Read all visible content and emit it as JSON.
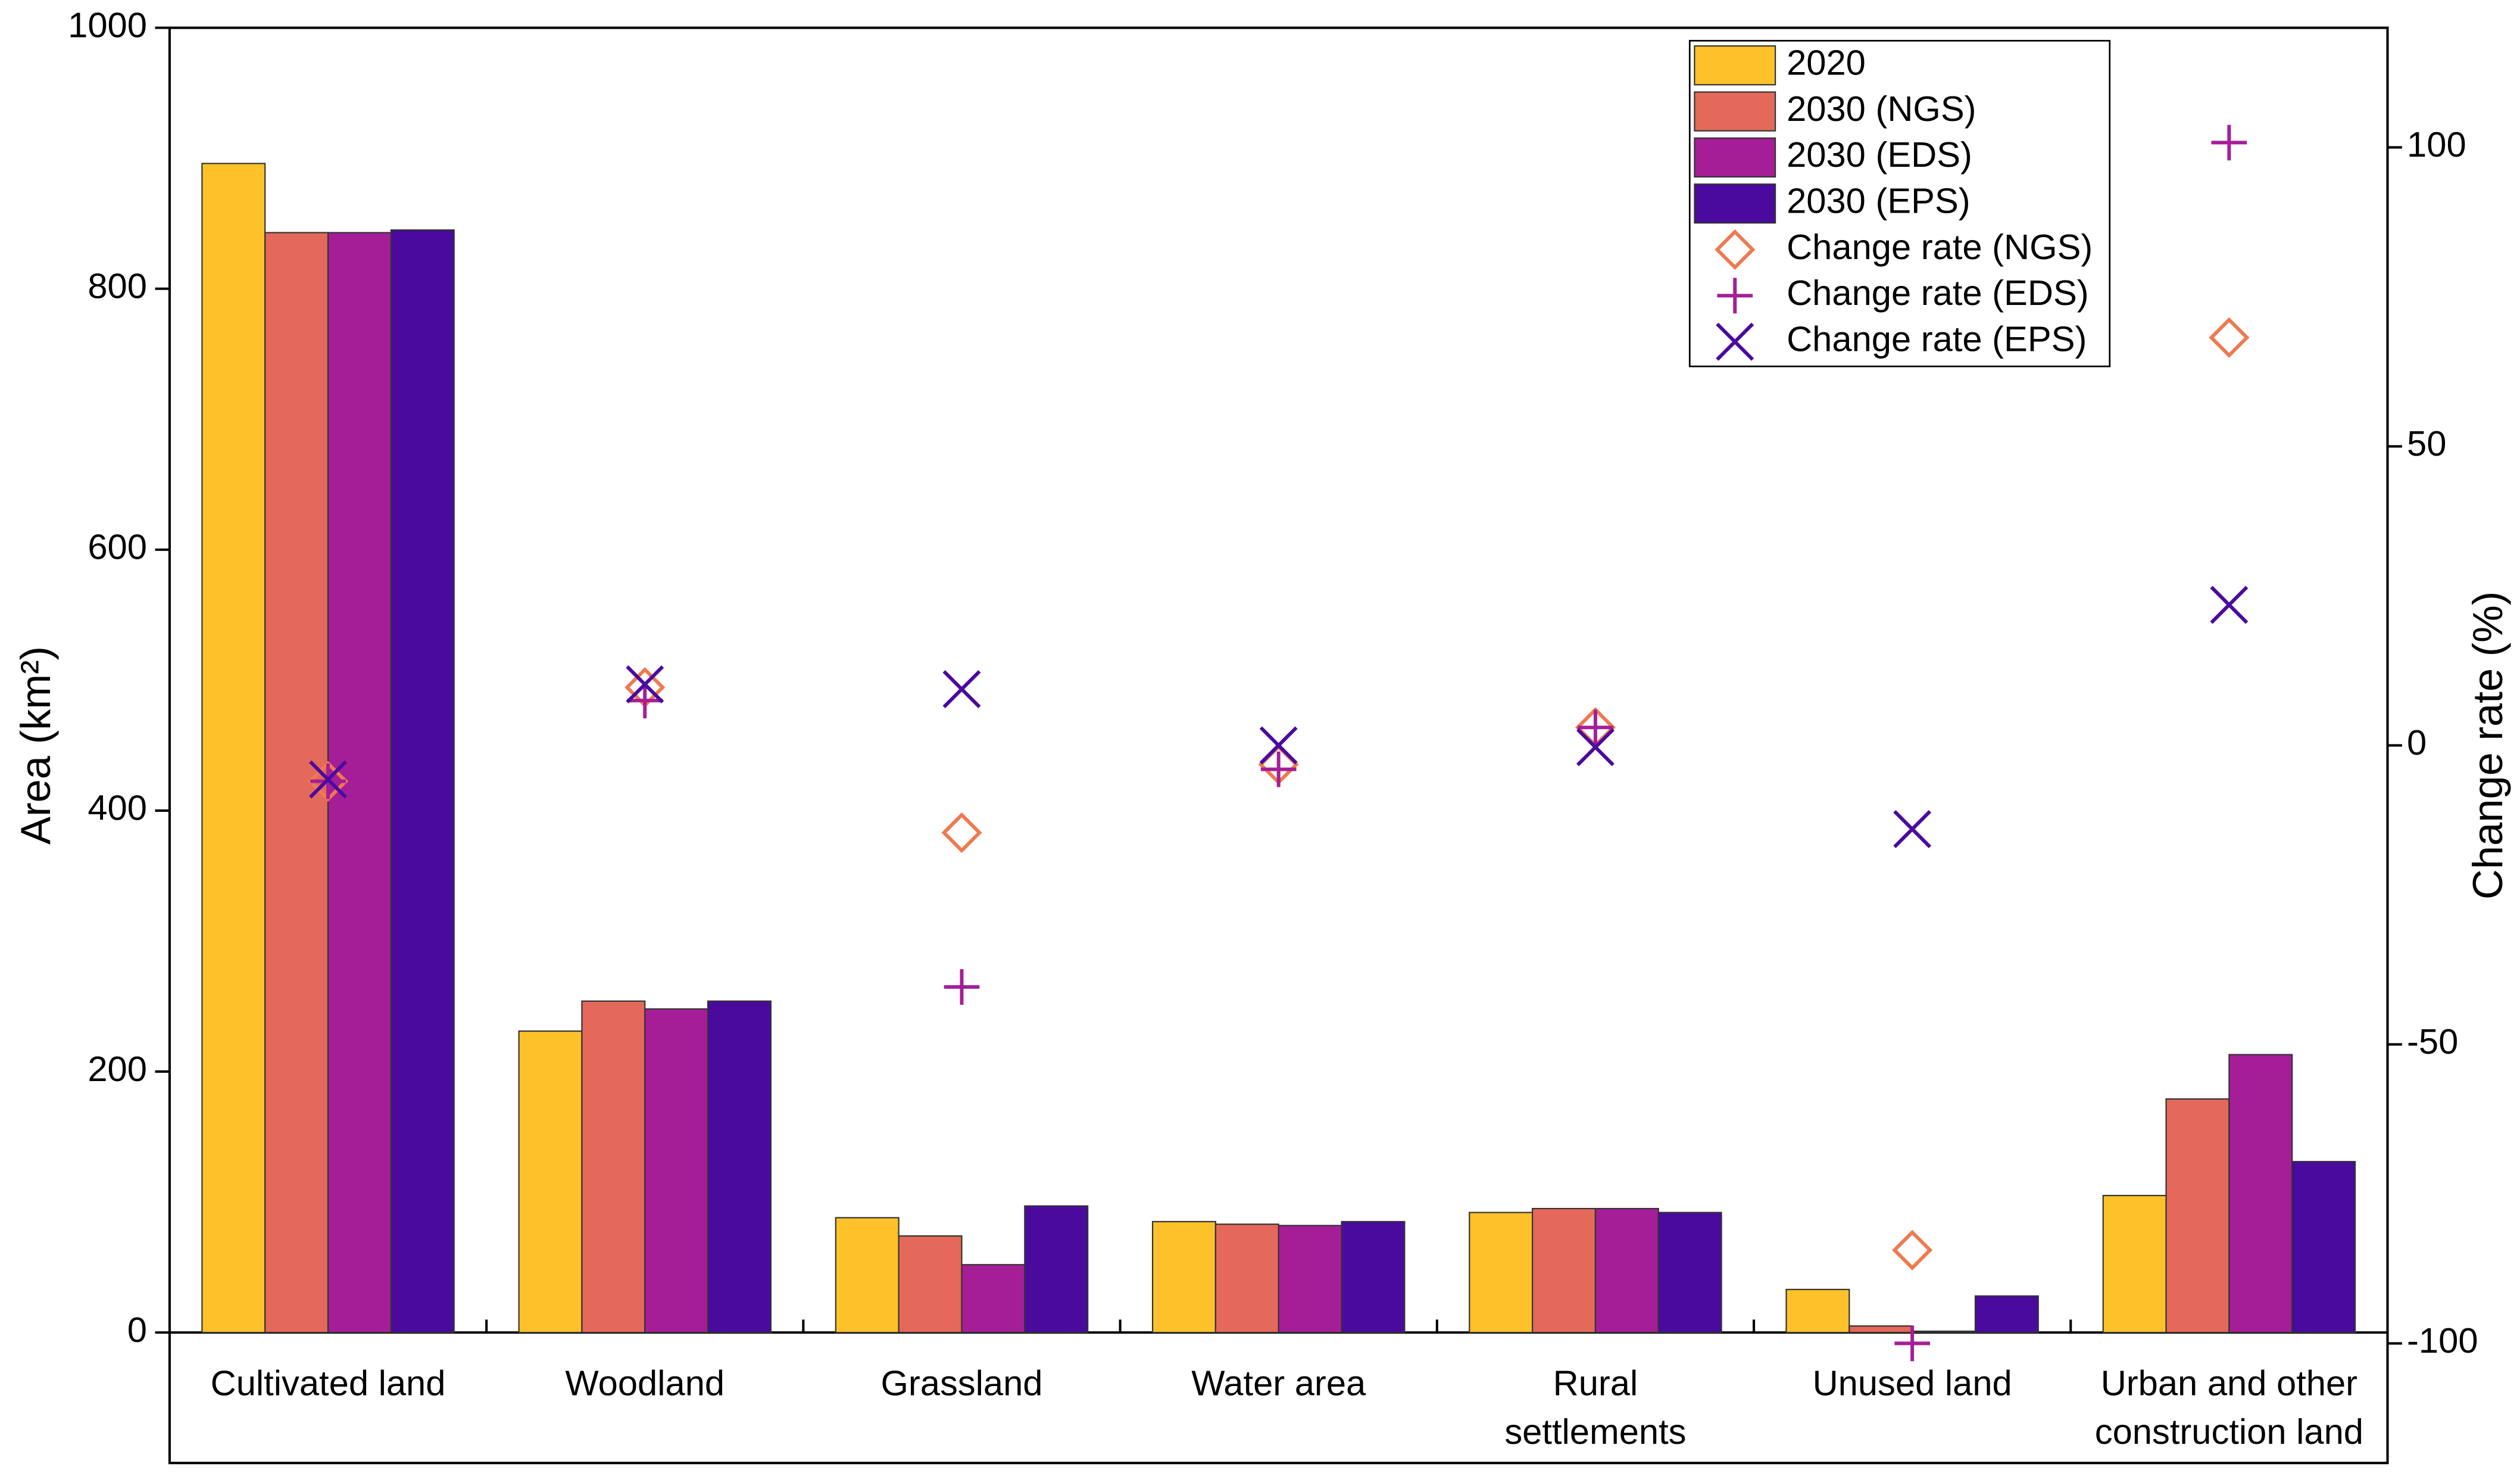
{
  "chart_data": {
    "type": "bar",
    "categories": [
      "Cultivated land",
      "Woodland",
      "Grassland",
      "Water area",
      "Rural settlements",
      "Unused land",
      "Urban and other construction land"
    ],
    "y_label": "Area (km²)",
    "y2_label": "Change rate (%)",
    "ylim": [
      -100,
      1000
    ],
    "yticks": [
      0,
      200,
      400,
      600,
      800,
      1000
    ],
    "y2lim": [
      -120,
      120
    ],
    "y2ticks": [
      -100,
      -50,
      0,
      50,
      100
    ],
    "legend": "upper right",
    "series": [
      {
        "name": "2020",
        "type": "bar",
        "color": "#fdc12a",
        "values": [
          896,
          231,
          88,
          85,
          92,
          33,
          105
        ]
      },
      {
        "name": "2030 (NGS)",
        "type": "bar",
        "color": "#e4695a",
        "values": [
          843,
          254,
          74,
          83,
          95,
          5,
          179
        ]
      },
      {
        "name": "2030 (EDS)",
        "type": "bar",
        "color": "#a51e97",
        "values": [
          843,
          248,
          52,
          82,
          95,
          1,
          213
        ]
      },
      {
        "name": "2030 (EPS)",
        "type": "bar",
        "color": "#4b0a9e",
        "values": [
          845,
          254,
          97,
          85,
          92,
          28,
          131
        ]
      },
      {
        "name": "Change rate (NGS)",
        "type": "scatter",
        "marker": "diamond",
        "axis": "y2",
        "color": "#ee7a50",
        "values": [
          -6,
          9.7,
          -14.6,
          -3.2,
          3,
          -84.4,
          68.2
        ]
      },
      {
        "name": "Change rate (EDS)",
        "type": "scatter",
        "marker": "plus",
        "axis": "y2",
        "color": "#a51e97",
        "values": [
          -6,
          7.5,
          -40.4,
          -4,
          3,
          -100,
          100.8
        ]
      },
      {
        "name": "Change rate (EPS)",
        "type": "scatter",
        "marker": "x",
        "axis": "y2",
        "color": "#4b0a9e",
        "values": [
          -5.7,
          10.2,
          9.4,
          0,
          -0.3,
          -14,
          23.5
        ]
      }
    ]
  }
}
